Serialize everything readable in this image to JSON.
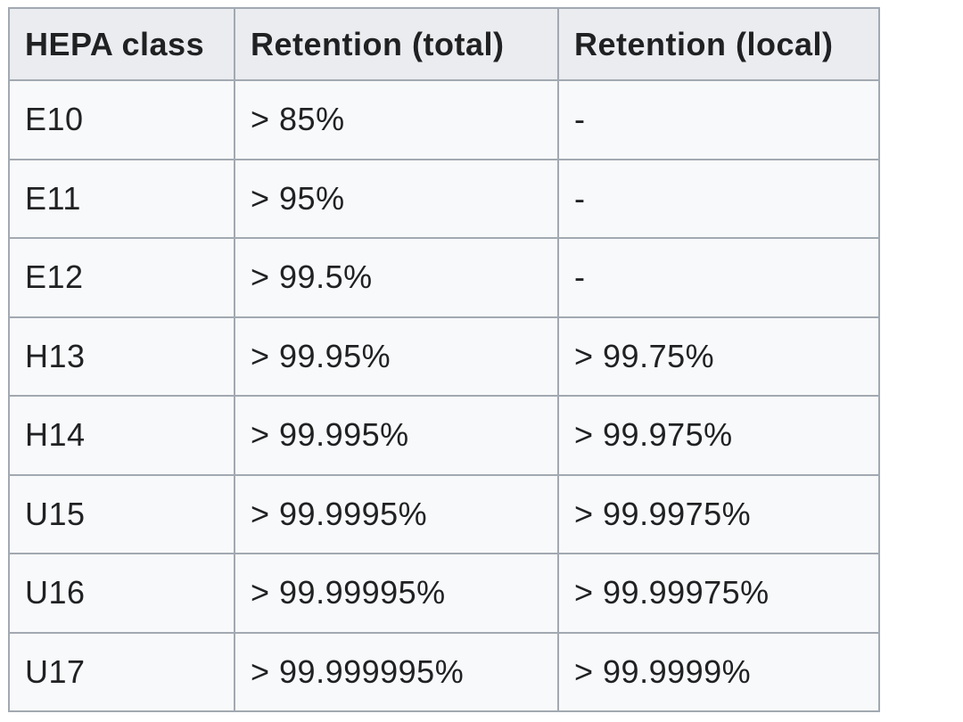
{
  "chart_data": {
    "type": "table",
    "columns": [
      "HEPA class",
      "Retention (total)",
      "Retention (local)"
    ],
    "rows": [
      [
        "E10",
        "> 85%",
        "-"
      ],
      [
        "E11",
        "> 95%",
        "-"
      ],
      [
        "E12",
        "> 99.5%",
        "-"
      ],
      [
        "H13",
        "> 99.95%",
        "> 99.75%"
      ],
      [
        "H14",
        "> 99.995%",
        "> 99.975%"
      ],
      [
        "U15",
        "> 99.9995%",
        "> 99.9975%"
      ],
      [
        "U16",
        "> 99.99995%",
        "> 99.99975%"
      ],
      [
        "U17",
        "> 99.999995%",
        "> 99.9999%"
      ]
    ],
    "layout": {
      "header_background": "#eaecf0",
      "cell_background": "#f8f9fa",
      "border_color": "#a2a9b1",
      "text_color": "#202122"
    }
  }
}
